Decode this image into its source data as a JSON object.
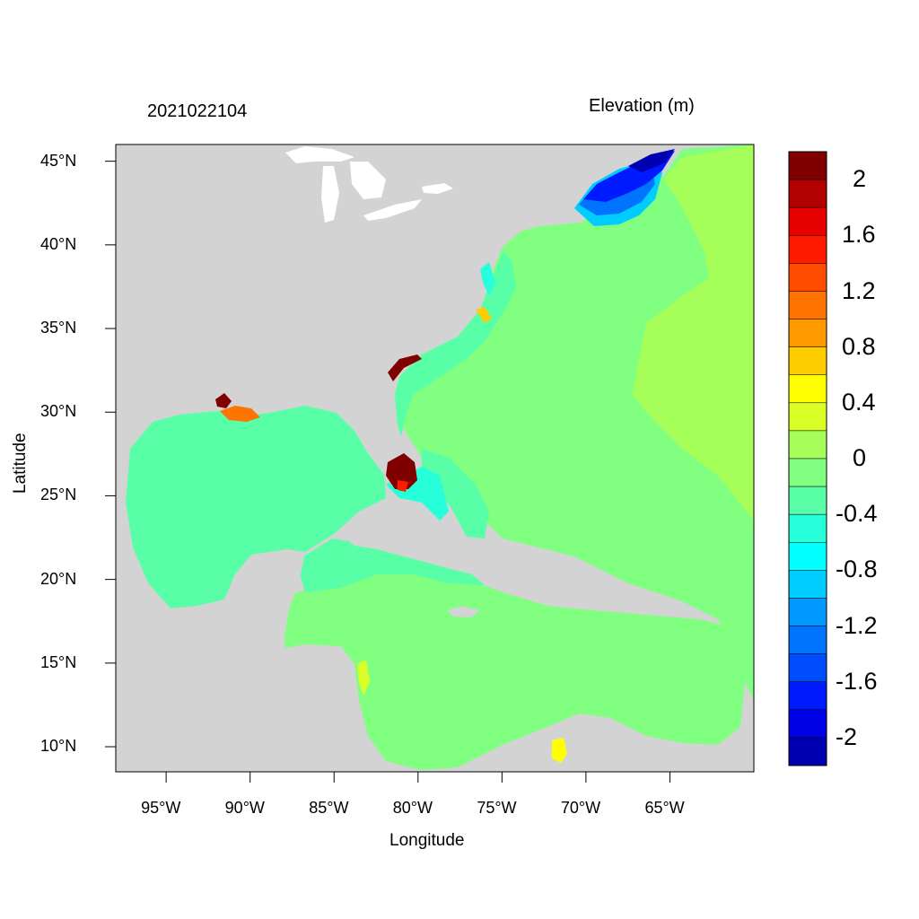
{
  "title_left": "2021022104",
  "title_right": "Elevation (m)",
  "xlabel": "Longitude",
  "ylabel": "Latitude",
  "map": {
    "lon_range": [
      -98,
      -60
    ],
    "lat_range": [
      8.5,
      46
    ],
    "lon_ticks": [
      {
        "value": -95,
        "label": "95°W"
      },
      {
        "value": -90,
        "label": "90°W"
      },
      {
        "value": -85,
        "label": "85°W"
      },
      {
        "value": -80,
        "label": "80°W"
      },
      {
        "value": -75,
        "label": "75°W"
      },
      {
        "value": -70,
        "label": "70°W"
      },
      {
        "value": -65,
        "label": "65°W"
      }
    ],
    "lat_ticks": [
      {
        "value": 45,
        "label": "45°N"
      },
      {
        "value": 40,
        "label": "40°N"
      },
      {
        "value": 35,
        "label": "35°N"
      },
      {
        "value": 30,
        "label": "30°N"
      },
      {
        "value": 25,
        "label": "25°N"
      },
      {
        "value": 20,
        "label": "20°N"
      },
      {
        "value": 15,
        "label": "15°N"
      },
      {
        "value": 10,
        "label": "10°N"
      }
    ],
    "land_color": "#d3d3d3",
    "ocean_base_color": "#80ff80"
  },
  "colorbar": {
    "colors": [
      "#800000",
      "#b30000",
      "#e60000",
      "#ff1a00",
      "#ff4d00",
      "#ff7300",
      "#ff9900",
      "#ffcc00",
      "#ffff00",
      "#d9ff26",
      "#a6ff59",
      "#80ff80",
      "#59ffa6",
      "#26ffd9",
      "#00ffff",
      "#00ccff",
      "#0099ff",
      "#0073ff",
      "#004dff",
      "#001aff",
      "#0000e6",
      "#0000b3"
    ],
    "labels": [
      {
        "value": "2",
        "boundary": 2
      },
      {
        "value": "1.6",
        "boundary": 4
      },
      {
        "value": "1.2",
        "boundary": 6
      },
      {
        "value": "0.8",
        "boundary": 8
      },
      {
        "value": "0.4",
        "boundary": 10
      },
      {
        "value": "0",
        "boundary": 12
      },
      {
        "value": "-0.4",
        "boundary": 14
      },
      {
        "value": "-0.8",
        "boundary": 16
      },
      {
        "value": "-1.2",
        "boundary": 18
      },
      {
        "value": "-1.6",
        "boundary": 20
      },
      {
        "value": "-2",
        "boundary": 22
      }
    ]
  }
}
